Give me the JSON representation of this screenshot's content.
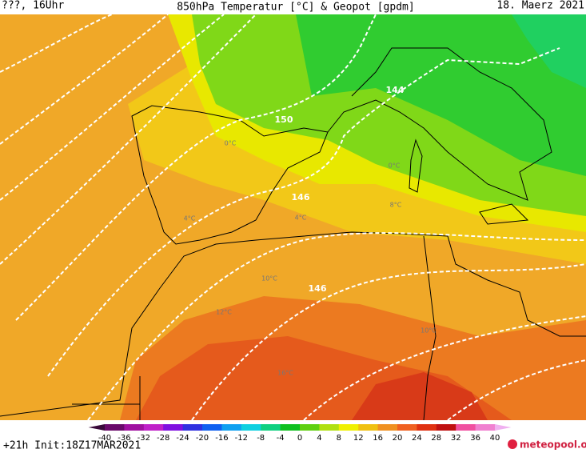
{
  "header": {
    "left": "???, 16Uhr",
    "title": "850hPa Temperatur [°C] & Geopot [gpdm]",
    "date": "18. Maerz 2021"
  },
  "geopotential_labels": [
    "150",
    "144",
    "146",
    "146"
  ],
  "temperature_labels": [
    "0°C",
    "0°C",
    "4°C",
    "4°C",
    "8°C",
    "10°C",
    "10°C",
    "12°C",
    "16°C"
  ],
  "colorbar": {
    "ticks": [
      -40,
      -36,
      -32,
      -28,
      -24,
      -20,
      -16,
      -12,
      -8,
      -4,
      0,
      4,
      8,
      12,
      16,
      20,
      24,
      28,
      32,
      36,
      40
    ],
    "colors": [
      "#3a0a3a",
      "#6a0a6a",
      "#a010a0",
      "#c020c8",
      "#8010e0",
      "#3030e0",
      "#1060f0",
      "#10a0f0",
      "#10d0e0",
      "#10d080",
      "#10c020",
      "#60d010",
      "#b0e010",
      "#f0f000",
      "#f0c010",
      "#f09020",
      "#f06020",
      "#e03010",
      "#c01010",
      "#f050a0",
      "#f080d0",
      "#f0b0f0"
    ]
  },
  "footer": {
    "run": "+21h Init:18Z17MAR2021",
    "logo": "meteopool.org"
  }
}
